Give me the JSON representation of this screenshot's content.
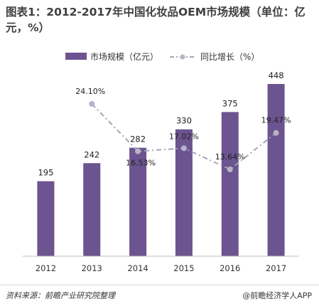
{
  "title": "图表1：2012-2017年中国化妆品OEM市场规模（单位：亿元，%）",
  "legend": {
    "bar": "市场规模（亿元）",
    "line": "同比增长（%）"
  },
  "footer": {
    "source": "资料来源：前瞻产业研究院整理",
    "brand": "@前瞻经济学人APP"
  },
  "colors": {
    "bar": "#6b548f",
    "line": "#a7a2b8",
    "marker": "#b8b3c8"
  },
  "chart_data": {
    "type": "bar",
    "categories": [
      "2012",
      "2013",
      "2014",
      "2015",
      "2016",
      "2017"
    ],
    "series": [
      {
        "name": "市场规模（亿元）",
        "type": "bar",
        "values": [
          195,
          242,
          282,
          330,
          375,
          448
        ],
        "labels": [
          "195",
          "242",
          "282",
          "330",
          "375",
          "448"
        ]
      },
      {
        "name": "同比增长（%）",
        "type": "line",
        "style": "dash-dot",
        "values": [
          null,
          24.1,
          16.53,
          17.02,
          13.64,
          19.47
        ],
        "labels": [
          "",
          "24.10%",
          "16.53%",
          "17.02%",
          "13.64%",
          "19.47%"
        ]
      }
    ],
    "bar_ylim": [
      0,
      460
    ],
    "line_ylim": [
      0,
      30
    ],
    "grid": false,
    "legend_position": "top"
  }
}
